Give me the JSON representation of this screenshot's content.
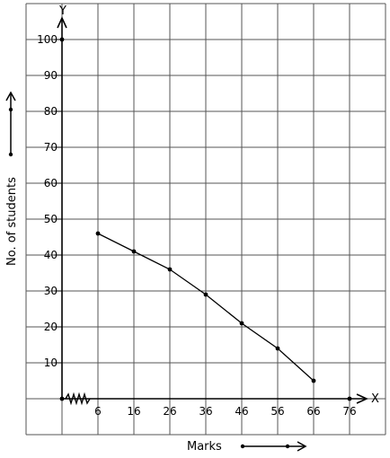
{
  "chart_data": {
    "type": "line",
    "xlabel": "Marks",
    "ylabel": "No. of students",
    "x_axis_letter": "X",
    "y_axis_letter": "Y",
    "x_ticks": [
      "6",
      "16",
      "26",
      "36",
      "46",
      "56",
      "66",
      "76"
    ],
    "y_ticks": [
      "10",
      "20",
      "30",
      "40",
      "50",
      "60",
      "70",
      "80",
      "90",
      "100"
    ],
    "xlim": [
      -4,
      86
    ],
    "ylim": [
      -10,
      110
    ],
    "grid": true,
    "series": [
      {
        "x": [
          6,
          16,
          26,
          36,
          46,
          56,
          66
        ],
        "y": [
          46,
          41,
          36,
          29,
          21,
          14,
          5
        ]
      }
    ]
  }
}
